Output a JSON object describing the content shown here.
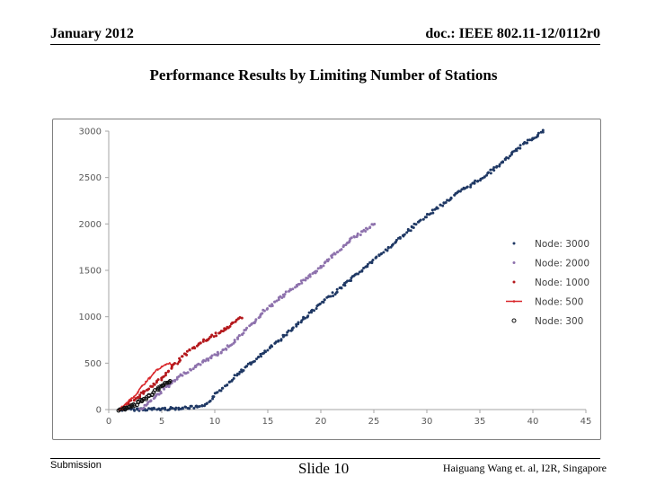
{
  "header": {
    "date": "January 2012",
    "doc": "doc.: IEEE 802.11-12/0112r0"
  },
  "slide_title": "Performance Results by Limiting Number of Stations",
  "footer": {
    "left": "Submission",
    "center": "Slide 10",
    "right": "Haiguang Wang et. al, I2R, Singapore"
  },
  "colors": {
    "node3000": "#1f3864",
    "node2000": "#8e72ad",
    "node1000": "#b4181c",
    "node500": "#d9262a",
    "node300": "#111111",
    "axis": "#a6a6a6"
  },
  "chart_data": {
    "type": "scatter",
    "title": "",
    "xlabel": "",
    "ylabel": "",
    "xlim": [
      0,
      45
    ],
    "ylim": [
      0,
      3000
    ],
    "xticks": [
      "0",
      "5",
      "10",
      "15",
      "20",
      "25",
      "30",
      "35",
      "40",
      "45"
    ],
    "yticks": [
      "0",
      "500",
      "1000",
      "1500",
      "2000",
      "2500",
      "3000"
    ],
    "legend_position": "right",
    "series": [
      {
        "name": "Node: 3000",
        "marker": "dot",
        "color": "#1f3864",
        "x": [
          1,
          5,
          9,
          10,
          12,
          15,
          17,
          20,
          22,
          25,
          27,
          30,
          32.5,
          35,
          37,
          39,
          41
        ],
        "y": [
          0,
          5,
          30,
          150,
          370,
          640,
          840,
          1140,
          1320,
          1610,
          1800,
          2090,
          2300,
          2480,
          2650,
          2850,
          3000
        ]
      },
      {
        "name": "Node: 2000",
        "marker": "dot",
        "color": "#8e72ad",
        "x": [
          3,
          5,
          7,
          9,
          11,
          13,
          15,
          18,
          20,
          22.5,
          25
        ],
        "y": [
          0,
          200,
          380,
          520,
          650,
          860,
          1100,
          1360,
          1530,
          1800,
          2000
        ]
      },
      {
        "name": "Node: 1000",
        "marker": "dot",
        "color": "#b4181c",
        "x": [
          1,
          3,
          5,
          7,
          9,
          11,
          12.5
        ],
        "y": [
          0,
          160,
          330,
          580,
          740,
          860,
          1000
        ]
      },
      {
        "name": "Node: 500",
        "marker": "line",
        "color": "#d9262a",
        "x": [
          1,
          2.5,
          3.5,
          4.5,
          5.5,
          6
        ],
        "y": [
          0,
          150,
          300,
          420,
          490,
          500
        ]
      },
      {
        "name": "Node: 300",
        "marker": "circle",
        "color": "#111111",
        "x": [
          1,
          2,
          3,
          4,
          5,
          5.8
        ],
        "y": [
          0,
          20,
          90,
          160,
          250,
          300
        ]
      }
    ]
  }
}
